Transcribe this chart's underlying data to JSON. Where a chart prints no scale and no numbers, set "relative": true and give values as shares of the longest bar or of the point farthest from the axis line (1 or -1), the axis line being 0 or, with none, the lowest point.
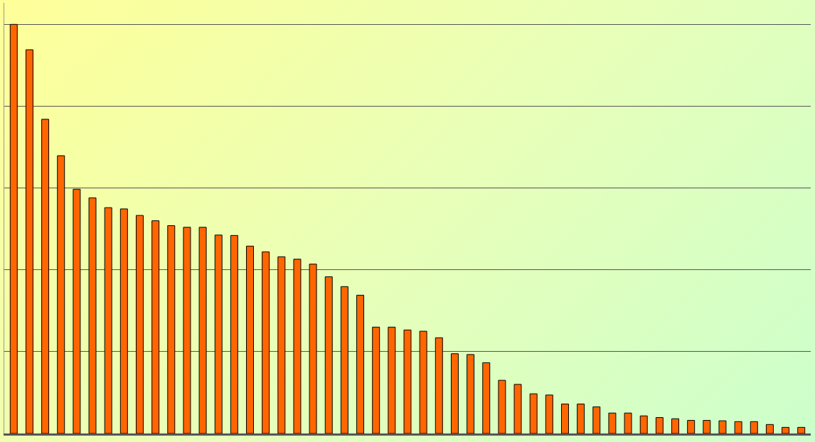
{
  "chart_data": {
    "type": "bar",
    "relative": true,
    "grid": "y",
    "tick_labels": false,
    "color": "#ff6600",
    "categories": [
      null,
      null,
      null,
      null,
      null,
      null,
      null,
      null,
      null,
      null,
      null,
      null,
      null,
      null,
      null,
      null,
      null,
      null,
      null,
      null,
      null,
      null,
      null,
      null,
      null,
      null,
      null,
      null,
      null,
      null,
      null,
      null,
      null,
      null,
      null,
      null,
      null,
      null,
      null,
      null,
      null,
      null,
      null,
      null,
      null,
      null,
      null,
      null,
      null,
      null,
      null
    ],
    "values": [
      1,
      0.938,
      0.768,
      0.679,
      0.597,
      0.576,
      0.552,
      0.549,
      0.533,
      0.52,
      0.508,
      0.504,
      0.504,
      0.485,
      0.484,
      0.458,
      0.444,
      0.432,
      0.426,
      0.414,
      0.383,
      0.359,
      0.338,
      0.26,
      0.26,
      0.253,
      0.25,
      0.234,
      0.195,
      0.193,
      0.173,
      0.13,
      0.12,
      0.097,
      0.094,
      0.072,
      0.072,
      0.065,
      0.05,
      0.05,
      0.043,
      0.039,
      0.036,
      0.032,
      0.032,
      0.031,
      0.029,
      0.029,
      0.022,
      0.015,
      0.015
    ]
  }
}
